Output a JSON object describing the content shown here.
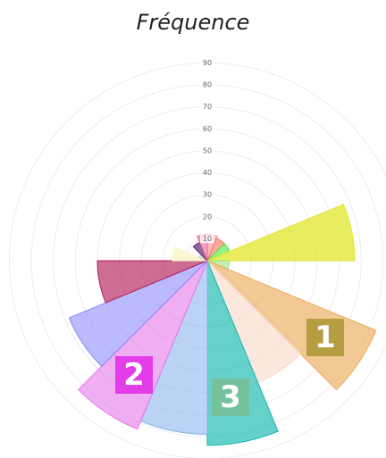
{
  "chart_data": {
    "type": "polarArea",
    "title": "Fréquence",
    "values": [
      12,
      11,
      11,
      67,
      10,
      83,
      60,
      84,
      79,
      83,
      68,
      50,
      16,
      4,
      9,
      12
    ],
    "colors": [
      "rgba(255,140,150,0.6)",
      "rgba(245,120,90,0.6)",
      "rgba(80,230,60,0.6)",
      "rgba(225,230,40,0.75)",
      "rgba(150,230,120,0.6)",
      "rgba(235,170,90,0.65)",
      "rgba(248,215,200,0.6)",
      "rgba(20,185,175,0.65)",
      "rgba(140,180,235,0.6)",
      "rgba(230,120,235,0.6)",
      "rgba(140,140,250,0.6)",
      "rgba(180,30,90,0.65)",
      "rgba(250,245,200,0.8)",
      "rgba(200,200,200,0.5)",
      "rgba(90,40,120,0.7)",
      "rgba(230,100,150,0.6)"
    ],
    "rlim": [
      0,
      90
    ],
    "rticks": [
      10,
      20,
      30,
      40,
      50,
      60,
      70,
      80,
      90
    ],
    "grid": true,
    "annotations": [
      "1",
      "2",
      "3"
    ]
  }
}
